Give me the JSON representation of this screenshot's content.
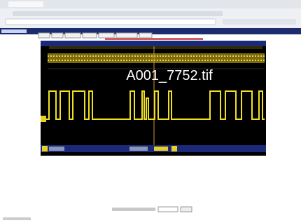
{
  "overlay": {
    "filename": "A001_7752.tif"
  }
}
